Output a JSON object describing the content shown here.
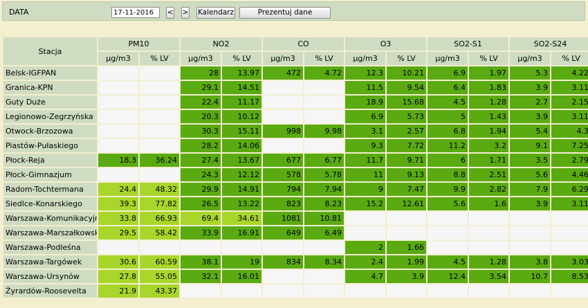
{
  "header": {
    "date_label": "DATA",
    "date_value": "17-11-2016",
    "prev_label": "<",
    "next_label": ">",
    "calendar_label": "Kalendarz",
    "present_label": "Prezentuj dane"
  },
  "colors": {
    "good": "#5aaa11",
    "moderate": "#a8d62b",
    "nodata": "#f6f6f6",
    "header": "#cfdcc1"
  },
  "table": {
    "station_header": "Stacja",
    "pollutants": [
      {
        "name": "PM10",
        "units": [
          "µg/m3",
          "% LV"
        ]
      },
      {
        "name": "NO2",
        "units": [
          "µg/m3",
          "% LV"
        ]
      },
      {
        "name": "CO",
        "units": [
          "µg/m3",
          "% LV"
        ]
      },
      {
        "name": "O3",
        "units": [
          "µg/m3",
          "% LV"
        ]
      },
      {
        "name": "SO2-S1",
        "units": [
          "µg/m3",
          "% LV"
        ]
      },
      {
        "name": "SO2-S24",
        "units": [
          "µg/m3",
          "% LV"
        ]
      }
    ],
    "rows": [
      {
        "station": "Belsk-IGFPAN",
        "cells": [
          [
            "",
            ""
          ],
          [
            "28",
            "13.97"
          ],
          [
            "472",
            "4.72"
          ],
          [
            "12.3",
            "10.21"
          ],
          [
            "6.9",
            "1.97"
          ],
          [
            "5.3",
            "4.22"
          ]
        ],
        "levels": [
          "e",
          "g",
          "g",
          "g",
          "g",
          "g"
        ]
      },
      {
        "station": "Granica-KPN",
        "cells": [
          [
            "",
            ""
          ],
          [
            "29.1",
            "14.51"
          ],
          [
            "",
            ""
          ],
          [
            "11.5",
            "9.54"
          ],
          [
            "6.4",
            "1.83"
          ],
          [
            "3.9",
            "3.11"
          ]
        ],
        "levels": [
          "e",
          "g",
          "e",
          "g",
          "g",
          "g"
        ]
      },
      {
        "station": "Guty Duże",
        "cells": [
          [
            "",
            ""
          ],
          [
            "22.4",
            "11.17"
          ],
          [
            "",
            ""
          ],
          [
            "18.9",
            "15.68"
          ],
          [
            "4.5",
            "1.28"
          ],
          [
            "2.7",
            "2.15"
          ]
        ],
        "levels": [
          "e",
          "g",
          "e",
          "g",
          "g",
          "g"
        ]
      },
      {
        "station": "Legionowo-Zegrzyńska",
        "cells": [
          [
            "",
            ""
          ],
          [
            "20.3",
            "10.12"
          ],
          [
            "",
            ""
          ],
          [
            "6.9",
            "5.73"
          ],
          [
            "5",
            "1.43"
          ],
          [
            "3.9",
            "3.11"
          ]
        ],
        "levels": [
          "e",
          "g",
          "e",
          "g",
          "g",
          "g"
        ]
      },
      {
        "station": "Otwock-Brzozowa",
        "cells": [
          [
            "",
            ""
          ],
          [
            "30.3",
            "15.11"
          ],
          [
            "998",
            "9.98"
          ],
          [
            "3.1",
            "2.57"
          ],
          [
            "6.8",
            "1.94"
          ],
          [
            "5.4",
            "4.3"
          ]
        ],
        "levels": [
          "e",
          "g",
          "g",
          "g",
          "g",
          "g"
        ]
      },
      {
        "station": "Piastów-Pułaskiego",
        "cells": [
          [
            "",
            ""
          ],
          [
            "28.2",
            "14.06"
          ],
          [
            "",
            ""
          ],
          [
            "9.3",
            "7.72"
          ],
          [
            "11.2",
            "3.2"
          ],
          [
            "9.1",
            "7.25"
          ]
        ],
        "levels": [
          "e",
          "g",
          "e",
          "g",
          "g",
          "g"
        ]
      },
      {
        "station": "Płock-Reja",
        "cells": [
          [
            "18.3",
            "36.24"
          ],
          [
            "27.4",
            "13.67"
          ],
          [
            "677",
            "6.77"
          ],
          [
            "11.7",
            "9.71"
          ],
          [
            "6",
            "1.71"
          ],
          [
            "3.5",
            "2.79"
          ]
        ],
        "levels": [
          "g",
          "g",
          "g",
          "g",
          "g",
          "g"
        ]
      },
      {
        "station": "Płock-Gimnazjum",
        "cells": [
          [
            "",
            ""
          ],
          [
            "24.3",
            "12.12"
          ],
          [
            "578",
            "5.78"
          ],
          [
            "11",
            "9.13"
          ],
          [
            "8.8",
            "2.51"
          ],
          [
            "5.6",
            "4.46"
          ]
        ],
        "levels": [
          "e",
          "g",
          "g",
          "g",
          "g",
          "g"
        ]
      },
      {
        "station": "Radom-Tochtermana",
        "cells": [
          [
            "24.4",
            "48.32"
          ],
          [
            "29.9",
            "14.91"
          ],
          [
            "794",
            "7.94"
          ],
          [
            "9",
            "7.47"
          ],
          [
            "9.9",
            "2.82"
          ],
          [
            "7.9",
            "6.29"
          ]
        ],
        "levels": [
          "l",
          "g",
          "g",
          "g",
          "g",
          "g"
        ]
      },
      {
        "station": "Siedlce-Konarskiego",
        "cells": [
          [
            "39.3",
            "77.82"
          ],
          [
            "26.5",
            "13.22"
          ],
          [
            "823",
            "8.23"
          ],
          [
            "15.2",
            "12.61"
          ],
          [
            "5.6",
            "1.6"
          ],
          [
            "3.9",
            "3.11"
          ]
        ],
        "levels": [
          "l",
          "g",
          "g",
          "g",
          "g",
          "g"
        ]
      },
      {
        "station": "Warszawa-Komunikacyjna",
        "cells": [
          [
            "33.8",
            "66.93"
          ],
          [
            "69.4",
            "34.61"
          ],
          [
            "1081",
            "10.81"
          ],
          [
            "",
            ""
          ],
          [
            "",
            ""
          ],
          [
            "",
            ""
          ]
        ],
        "levels": [
          "l",
          "l",
          "g",
          "e",
          "e",
          "e"
        ]
      },
      {
        "station": "Warszawa-Marszałkowska",
        "cells": [
          [
            "29.5",
            "58.42"
          ],
          [
            "33.9",
            "16.91"
          ],
          [
            "649",
            "6.49"
          ],
          [
            "",
            ""
          ],
          [
            "",
            ""
          ],
          [
            "",
            ""
          ]
        ],
        "levels": [
          "l",
          "g",
          "g",
          "e",
          "e",
          "e"
        ]
      },
      {
        "station": "Warszawa-Podleśna",
        "cells": [
          [
            "",
            ""
          ],
          [
            "",
            ""
          ],
          [
            "",
            ""
          ],
          [
            "2",
            "1.66"
          ],
          [
            "",
            ""
          ],
          [
            "",
            ""
          ]
        ],
        "levels": [
          "e",
          "e",
          "e",
          "g",
          "e",
          "e"
        ]
      },
      {
        "station": "Warszawa-Targówek",
        "cells": [
          [
            "30.6",
            "60.59"
          ],
          [
            "38.1",
            "19"
          ],
          [
            "834",
            "8.34"
          ],
          [
            "2.4",
            "1.99"
          ],
          [
            "4.5",
            "1.28"
          ],
          [
            "3.8",
            "3.03"
          ]
        ],
        "levels": [
          "l",
          "g",
          "g",
          "g",
          "g",
          "g"
        ]
      },
      {
        "station": "Warszawa-Ursynów",
        "cells": [
          [
            "27.8",
            "55.05"
          ],
          [
            "32.1",
            "16.01"
          ],
          [
            "",
            ""
          ],
          [
            "4.7",
            "3.9"
          ],
          [
            "12.4",
            "3.54"
          ],
          [
            "10.7",
            "8.53"
          ]
        ],
        "levels": [
          "l",
          "g",
          "e",
          "g",
          "g",
          "g"
        ]
      },
      {
        "station": "Żyrardów-Roosevelta",
        "cells": [
          [
            "21.9",
            "43.37"
          ],
          [
            "",
            ""
          ],
          [
            "",
            ""
          ],
          [
            "",
            ""
          ],
          [
            "",
            ""
          ],
          [
            "",
            ""
          ]
        ],
        "levels": [
          "l",
          "e",
          "e",
          "e",
          "e",
          "e"
        ]
      }
    ]
  }
}
